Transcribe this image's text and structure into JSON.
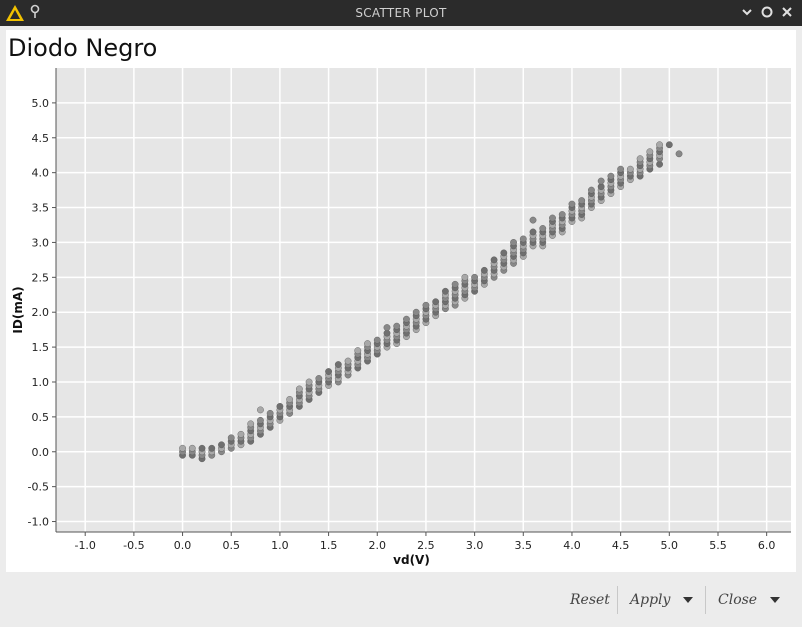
{
  "window": {
    "title": "SCATTER PLOT"
  },
  "footer": {
    "reset_label": "Reset",
    "apply_label": "Apply",
    "close_label": "Close"
  },
  "chart_data": {
    "type": "scatter",
    "title": "Diodo Negro",
    "xlabel": "vd(V)",
    "ylabel": "ID(mA)",
    "xlim": [
      -1.3,
      6.25
    ],
    "ylim": [
      -1.15,
      5.5
    ],
    "xticks": [
      "-1.0",
      "-0.5",
      "0.0",
      "0.5",
      "1.0",
      "1.5",
      "2.0",
      "2.5",
      "3.0",
      "3.5",
      "4.0",
      "4.5",
      "5.0",
      "5.5",
      "6.0"
    ],
    "yticks": [
      "-1.0",
      "-0.5",
      "0.0",
      "0.5",
      "1.0",
      "1.5",
      "2.0",
      "2.5",
      "3.0",
      "3.5",
      "4.0",
      "4.5",
      "5.0"
    ],
    "grid": true,
    "background": "#e6e6e6",
    "point_colors": [
      "#6f6f6f",
      "#888888",
      "#a8a8a8"
    ],
    "points": [
      [
        0,
        -0.05
      ],
      [
        0,
        0
      ],
      [
        0,
        0.05
      ],
      [
        0.1,
        -0.05
      ],
      [
        0.1,
        0
      ],
      [
        0.1,
        0.05
      ],
      [
        0.2,
        -0.1
      ],
      [
        0.2,
        -0.05
      ],
      [
        0.2,
        0
      ],
      [
        0.2,
        0.05
      ],
      [
        0.3,
        -0.05
      ],
      [
        0.3,
        0
      ],
      [
        0.3,
        0.05
      ],
      [
        0.4,
        0
      ],
      [
        0.4,
        0.05
      ],
      [
        0.4,
        0.1
      ],
      [
        0.5,
        0.05
      ],
      [
        0.5,
        0.1
      ],
      [
        0.5,
        0.15
      ],
      [
        0.5,
        0.2
      ],
      [
        0.6,
        0.1
      ],
      [
        0.6,
        0.15
      ],
      [
        0.6,
        0.2
      ],
      [
        0.6,
        0.25
      ],
      [
        0.7,
        0.15
      ],
      [
        0.7,
        0.2
      ],
      [
        0.7,
        0.25
      ],
      [
        0.7,
        0.3
      ],
      [
        0.7,
        0.35
      ],
      [
        0.7,
        0.4
      ],
      [
        0.8,
        0.25
      ],
      [
        0.8,
        0.3
      ],
      [
        0.8,
        0.35
      ],
      [
        0.8,
        0.4
      ],
      [
        0.8,
        0.45
      ],
      [
        0.8,
        0.6
      ],
      [
        0.9,
        0.35
      ],
      [
        0.9,
        0.4
      ],
      [
        0.9,
        0.45
      ],
      [
        0.9,
        0.5
      ],
      [
        0.9,
        0.55
      ],
      [
        1.0,
        0.45
      ],
      [
        1.0,
        0.5
      ],
      [
        1.0,
        0.55
      ],
      [
        1.0,
        0.6
      ],
      [
        1.0,
        0.65
      ],
      [
        1.1,
        0.55
      ],
      [
        1.1,
        0.6
      ],
      [
        1.1,
        0.65
      ],
      [
        1.1,
        0.7
      ],
      [
        1.1,
        0.75
      ],
      [
        1.2,
        0.65
      ],
      [
        1.2,
        0.7
      ],
      [
        1.2,
        0.75
      ],
      [
        1.2,
        0.8
      ],
      [
        1.2,
        0.85
      ],
      [
        1.2,
        0.9
      ],
      [
        1.3,
        0.75
      ],
      [
        1.3,
        0.8
      ],
      [
        1.3,
        0.85
      ],
      [
        1.3,
        0.9
      ],
      [
        1.3,
        0.95
      ],
      [
        1.3,
        1.0
      ],
      [
        1.4,
        0.85
      ],
      [
        1.4,
        0.9
      ],
      [
        1.4,
        0.95
      ],
      [
        1.4,
        1.0
      ],
      [
        1.4,
        1.05
      ],
      [
        1.5,
        0.95
      ],
      [
        1.5,
        1.0
      ],
      [
        1.5,
        1.05
      ],
      [
        1.5,
        1.1
      ],
      [
        1.5,
        1.15
      ],
      [
        1.6,
        1.0
      ],
      [
        1.6,
        1.05
      ],
      [
        1.6,
        1.1
      ],
      [
        1.6,
        1.15
      ],
      [
        1.6,
        1.2
      ],
      [
        1.6,
        1.25
      ],
      [
        1.7,
        1.1
      ],
      [
        1.7,
        1.15
      ],
      [
        1.7,
        1.2
      ],
      [
        1.7,
        1.25
      ],
      [
        1.7,
        1.3
      ],
      [
        1.8,
        1.2
      ],
      [
        1.8,
        1.25
      ],
      [
        1.8,
        1.3
      ],
      [
        1.8,
        1.35
      ],
      [
        1.8,
        1.4
      ],
      [
        1.8,
        1.45
      ],
      [
        1.9,
        1.3
      ],
      [
        1.9,
        1.35
      ],
      [
        1.9,
        1.4
      ],
      [
        1.9,
        1.45
      ],
      [
        1.9,
        1.5
      ],
      [
        1.9,
        1.55
      ],
      [
        2.0,
        1.4
      ],
      [
        2.0,
        1.45
      ],
      [
        2.0,
        1.5
      ],
      [
        2.0,
        1.55
      ],
      [
        2.0,
        1.6
      ],
      [
        2.1,
        1.5
      ],
      [
        2.1,
        1.55
      ],
      [
        2.1,
        1.6
      ],
      [
        2.1,
        1.65
      ],
      [
        2.1,
        1.7
      ],
      [
        2.1,
        1.78
      ],
      [
        2.2,
        1.55
      ],
      [
        2.2,
        1.6
      ],
      [
        2.2,
        1.65
      ],
      [
        2.2,
        1.7
      ],
      [
        2.2,
        1.75
      ],
      [
        2.2,
        1.8
      ],
      [
        2.3,
        1.65
      ],
      [
        2.3,
        1.7
      ],
      [
        2.3,
        1.75
      ],
      [
        2.3,
        1.8
      ],
      [
        2.3,
        1.85
      ],
      [
        2.3,
        1.9
      ],
      [
        2.4,
        1.75
      ],
      [
        2.4,
        1.8
      ],
      [
        2.4,
        1.85
      ],
      [
        2.4,
        1.9
      ],
      [
        2.4,
        1.95
      ],
      [
        2.4,
        2.0
      ],
      [
        2.5,
        1.85
      ],
      [
        2.5,
        1.9
      ],
      [
        2.5,
        1.95
      ],
      [
        2.5,
        2.0
      ],
      [
        2.5,
        2.05
      ],
      [
        2.5,
        2.1
      ],
      [
        2.6,
        1.95
      ],
      [
        2.6,
        2.0
      ],
      [
        2.6,
        2.05
      ],
      [
        2.6,
        2.1
      ],
      [
        2.6,
        2.15
      ],
      [
        2.7,
        2.05
      ],
      [
        2.7,
        2.1
      ],
      [
        2.7,
        2.15
      ],
      [
        2.7,
        2.2
      ],
      [
        2.7,
        2.25
      ],
      [
        2.7,
        2.3
      ],
      [
        2.8,
        2.1
      ],
      [
        2.8,
        2.15
      ],
      [
        2.8,
        2.2
      ],
      [
        2.8,
        2.25
      ],
      [
        2.8,
        2.3
      ],
      [
        2.8,
        2.35
      ],
      [
        2.8,
        2.4
      ],
      [
        2.9,
        2.2
      ],
      [
        2.9,
        2.25
      ],
      [
        2.9,
        2.3
      ],
      [
        2.9,
        2.35
      ],
      [
        2.9,
        2.4
      ],
      [
        2.9,
        2.45
      ],
      [
        2.9,
        2.5
      ],
      [
        3.0,
        2.3
      ],
      [
        3.0,
        2.35
      ],
      [
        3.0,
        2.4
      ],
      [
        3.0,
        2.45
      ],
      [
        3.0,
        2.5
      ],
      [
        3.1,
        2.4
      ],
      [
        3.1,
        2.45
      ],
      [
        3.1,
        2.5
      ],
      [
        3.1,
        2.55
      ],
      [
        3.1,
        2.6
      ],
      [
        3.2,
        2.5
      ],
      [
        3.2,
        2.55
      ],
      [
        3.2,
        2.6
      ],
      [
        3.2,
        2.65
      ],
      [
        3.2,
        2.7
      ],
      [
        3.2,
        2.75
      ],
      [
        3.3,
        2.6
      ],
      [
        3.3,
        2.65
      ],
      [
        3.3,
        2.7
      ],
      [
        3.3,
        2.75
      ],
      [
        3.3,
        2.8
      ],
      [
        3.3,
        2.85
      ],
      [
        3.4,
        2.7
      ],
      [
        3.4,
        2.75
      ],
      [
        3.4,
        2.8
      ],
      [
        3.4,
        2.85
      ],
      [
        3.4,
        2.9
      ],
      [
        3.4,
        2.95
      ],
      [
        3.4,
        3.0
      ],
      [
        3.5,
        2.8
      ],
      [
        3.5,
        2.85
      ],
      [
        3.5,
        2.9
      ],
      [
        3.5,
        2.95
      ],
      [
        3.5,
        3.0
      ],
      [
        3.5,
        3.05
      ],
      [
        3.6,
        2.95
      ],
      [
        3.6,
        3.0
      ],
      [
        3.6,
        3.05
      ],
      [
        3.6,
        3.1
      ],
      [
        3.6,
        3.15
      ],
      [
        3.6,
        3.32
      ],
      [
        3.7,
        2.95
      ],
      [
        3.7,
        3.0
      ],
      [
        3.7,
        3.05
      ],
      [
        3.7,
        3.1
      ],
      [
        3.7,
        3.15
      ],
      [
        3.7,
        3.2
      ],
      [
        3.8,
        3.1
      ],
      [
        3.8,
        3.15
      ],
      [
        3.8,
        3.2
      ],
      [
        3.8,
        3.25
      ],
      [
        3.8,
        3.3
      ],
      [
        3.8,
        3.35
      ],
      [
        3.9,
        3.15
      ],
      [
        3.9,
        3.2
      ],
      [
        3.9,
        3.25
      ],
      [
        3.9,
        3.3
      ],
      [
        3.9,
        3.35
      ],
      [
        3.9,
        3.4
      ],
      [
        4.0,
        3.3
      ],
      [
        4.0,
        3.35
      ],
      [
        4.0,
        3.4
      ],
      [
        4.0,
        3.45
      ],
      [
        4.0,
        3.5
      ],
      [
        4.0,
        3.55
      ],
      [
        4.1,
        3.35
      ],
      [
        4.1,
        3.4
      ],
      [
        4.1,
        3.45
      ],
      [
        4.1,
        3.5
      ],
      [
        4.1,
        3.55
      ],
      [
        4.1,
        3.6
      ],
      [
        4.2,
        3.5
      ],
      [
        4.2,
        3.55
      ],
      [
        4.2,
        3.6
      ],
      [
        4.2,
        3.65
      ],
      [
        4.2,
        3.7
      ],
      [
        4.2,
        3.75
      ],
      [
        4.3,
        3.6
      ],
      [
        4.3,
        3.65
      ],
      [
        4.3,
        3.7
      ],
      [
        4.3,
        3.75
      ],
      [
        4.3,
        3.8
      ],
      [
        4.3,
        3.88
      ],
      [
        4.4,
        3.7
      ],
      [
        4.4,
        3.75
      ],
      [
        4.4,
        3.8
      ],
      [
        4.4,
        3.85
      ],
      [
        4.4,
        3.9
      ],
      [
        4.4,
        3.95
      ],
      [
        4.5,
        3.8
      ],
      [
        4.5,
        3.85
      ],
      [
        4.5,
        3.9
      ],
      [
        4.5,
        3.95
      ],
      [
        4.5,
        4.0
      ],
      [
        4.5,
        4.05
      ],
      [
        4.6,
        3.9
      ],
      [
        4.6,
        3.95
      ],
      [
        4.6,
        4.0
      ],
      [
        4.6,
        4.05
      ],
      [
        4.7,
        3.95
      ],
      [
        4.7,
        4.0
      ],
      [
        4.7,
        4.05
      ],
      [
        4.7,
        4.1
      ],
      [
        4.7,
        4.15
      ],
      [
        4.7,
        4.2
      ],
      [
        4.8,
        4.05
      ],
      [
        4.8,
        4.1
      ],
      [
        4.8,
        4.15
      ],
      [
        4.8,
        4.2
      ],
      [
        4.8,
        4.25
      ],
      [
        4.8,
        4.3
      ],
      [
        4.9,
        4.12
      ],
      [
        4.9,
        4.2
      ],
      [
        4.9,
        4.25
      ],
      [
        4.9,
        4.3
      ],
      [
        4.9,
        4.35
      ],
      [
        4.9,
        4.4
      ],
      [
        5.0,
        4.4
      ],
      [
        5.1,
        4.27
      ]
    ]
  }
}
